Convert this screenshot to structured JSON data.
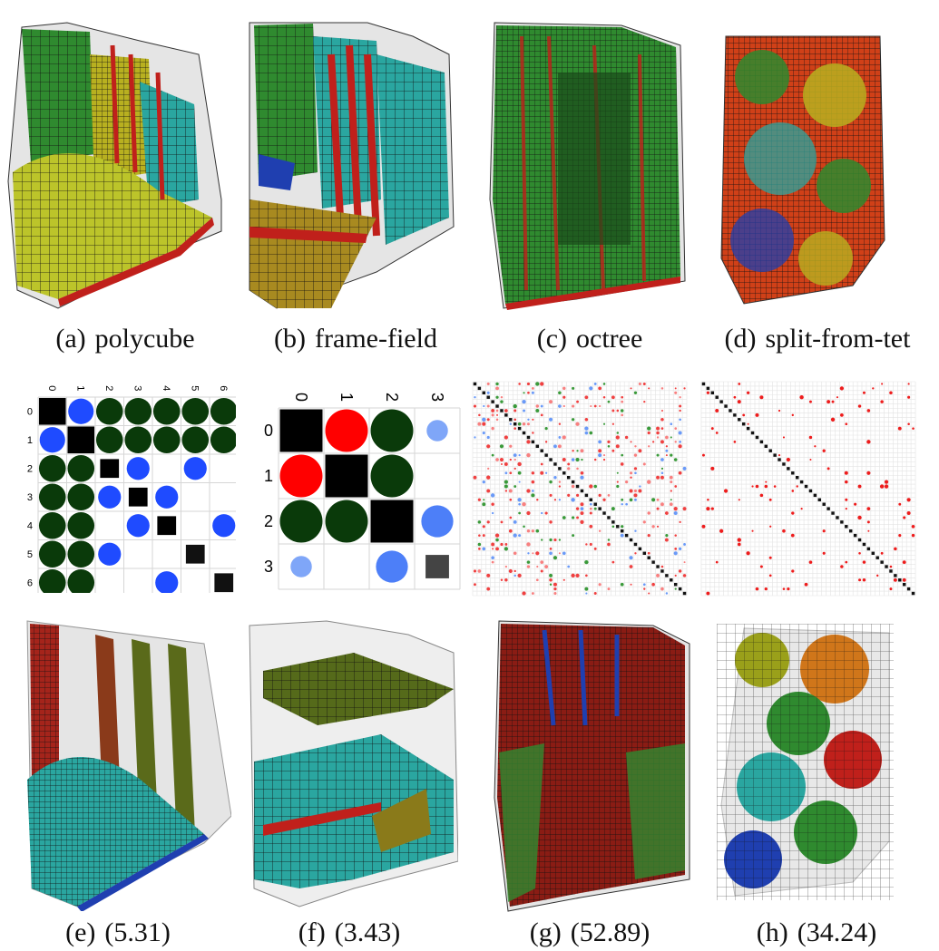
{
  "row1": [
    {
      "label": "(a)",
      "text": "polycube"
    },
    {
      "label": "(b)",
      "text": "frame-field"
    },
    {
      "label": "(c)",
      "text": "octree"
    },
    {
      "label": "(d)",
      "text": "split-from-tet"
    }
  ],
  "row3": [
    {
      "label": "(e)",
      "text": "(5.31)"
    },
    {
      "label": "(f)",
      "text": "(3.43)"
    },
    {
      "label": "(g)",
      "text": "(52.89)"
    },
    {
      "label": "(h)",
      "text": "(34.24)"
    }
  ],
  "matrix1": {
    "size": 7,
    "headers": [
      "0",
      "1",
      "2",
      "3",
      "4",
      "5",
      "6"
    ],
    "cells": [
      [
        0,
        0,
        "square",
        1.0,
        "#000000"
      ],
      [
        0,
        1,
        "circle",
        0.95,
        "#1f4bff"
      ],
      [
        0,
        2,
        "circle",
        1.0,
        "#0a3a0a"
      ],
      [
        0,
        3,
        "circle",
        1.0,
        "#0a3a0a"
      ],
      [
        0,
        4,
        "circle",
        1.0,
        "#0a3a0a"
      ],
      [
        0,
        5,
        "circle",
        1.0,
        "#0a3a0a"
      ],
      [
        0,
        6,
        "circle",
        1.0,
        "#0a3a0a"
      ],
      [
        1,
        0,
        "circle",
        0.95,
        "#1f4bff"
      ],
      [
        1,
        1,
        "square",
        1.0,
        "#000000"
      ],
      [
        1,
        2,
        "circle",
        1.0,
        "#0a3a0a"
      ],
      [
        1,
        3,
        "circle",
        1.0,
        "#0a3a0a"
      ],
      [
        1,
        4,
        "circle",
        1.0,
        "#0a3a0a"
      ],
      [
        1,
        5,
        "circle",
        1.0,
        "#0a3a0a"
      ],
      [
        1,
        6,
        "circle",
        1.0,
        "#0a3a0a"
      ],
      [
        2,
        0,
        "circle",
        1.0,
        "#0a3a0a"
      ],
      [
        2,
        1,
        "circle",
        1.0,
        "#0a3a0a"
      ],
      [
        2,
        2,
        "square",
        0.7,
        "#000000"
      ],
      [
        2,
        3,
        "circle",
        0.85,
        "#1f4bff"
      ],
      [
        2,
        5,
        "circle",
        0.85,
        "#1f4bff"
      ],
      [
        3,
        0,
        "circle",
        1.0,
        "#0a3a0a"
      ],
      [
        3,
        1,
        "circle",
        1.0,
        "#0a3a0a"
      ],
      [
        3,
        2,
        "circle",
        0.85,
        "#1f4bff"
      ],
      [
        3,
        3,
        "square",
        0.7,
        "#000000"
      ],
      [
        3,
        4,
        "circle",
        0.85,
        "#1f4bff"
      ],
      [
        4,
        0,
        "circle",
        1.0,
        "#0a3a0a"
      ],
      [
        4,
        1,
        "circle",
        1.0,
        "#0a3a0a"
      ],
      [
        4,
        3,
        "circle",
        0.85,
        "#1f4bff"
      ],
      [
        4,
        4,
        "square",
        0.7,
        "#000000"
      ],
      [
        4,
        6,
        "circle",
        0.85,
        "#1f4bff"
      ],
      [
        5,
        0,
        "circle",
        1.0,
        "#0a3a0a"
      ],
      [
        5,
        1,
        "circle",
        1.0,
        "#0a3a0a"
      ],
      [
        5,
        2,
        "circle",
        0.85,
        "#1f4bff"
      ],
      [
        5,
        5,
        "square",
        0.7,
        "#111111"
      ],
      [
        6,
        0,
        "circle",
        1.0,
        "#0a3a0a"
      ],
      [
        6,
        1,
        "circle",
        1.0,
        "#0a3a0a"
      ],
      [
        6,
        4,
        "circle",
        0.85,
        "#1f4bff"
      ],
      [
        6,
        6,
        "square",
        0.7,
        "#111111"
      ]
    ]
  },
  "matrix2": {
    "size": 4,
    "headers": [
      "0",
      "1",
      "2",
      "3"
    ],
    "cells": [
      [
        0,
        0,
        "square",
        1.0,
        "#000000"
      ],
      [
        0,
        1,
        "circle",
        1.0,
        "#ff0000"
      ],
      [
        0,
        2,
        "circle",
        1.0,
        "#0a3a0a"
      ],
      [
        0,
        3,
        "circle",
        0.5,
        "#7fa6f8"
      ],
      [
        1,
        0,
        "circle",
        1.0,
        "#ff0000"
      ],
      [
        1,
        1,
        "square",
        1.0,
        "#000000"
      ],
      [
        1,
        2,
        "circle",
        1.0,
        "#0a3a0a"
      ],
      [
        2,
        0,
        "circle",
        1.0,
        "#0a3a0a"
      ],
      [
        2,
        1,
        "circle",
        1.0,
        "#0a3a0a"
      ],
      [
        2,
        2,
        "square",
        1.0,
        "#000000"
      ],
      [
        2,
        3,
        "circle",
        0.75,
        "#4d7ff8"
      ],
      [
        3,
        0,
        "circle",
        0.5,
        "#7fa6f8"
      ],
      [
        3,
        2,
        "circle",
        0.75,
        "#4d7ff8"
      ],
      [
        3,
        3,
        "square",
        0.55,
        "#444444"
      ]
    ]
  },
  "colors": {
    "green": "#2f8a2f",
    "yellow": "#b8b020",
    "red": "#c0201b",
    "blue": "#1f3fb0",
    "cyan": "#2aa6a0",
    "orange": "#d0761a",
    "shell": "#d8d8d8"
  }
}
